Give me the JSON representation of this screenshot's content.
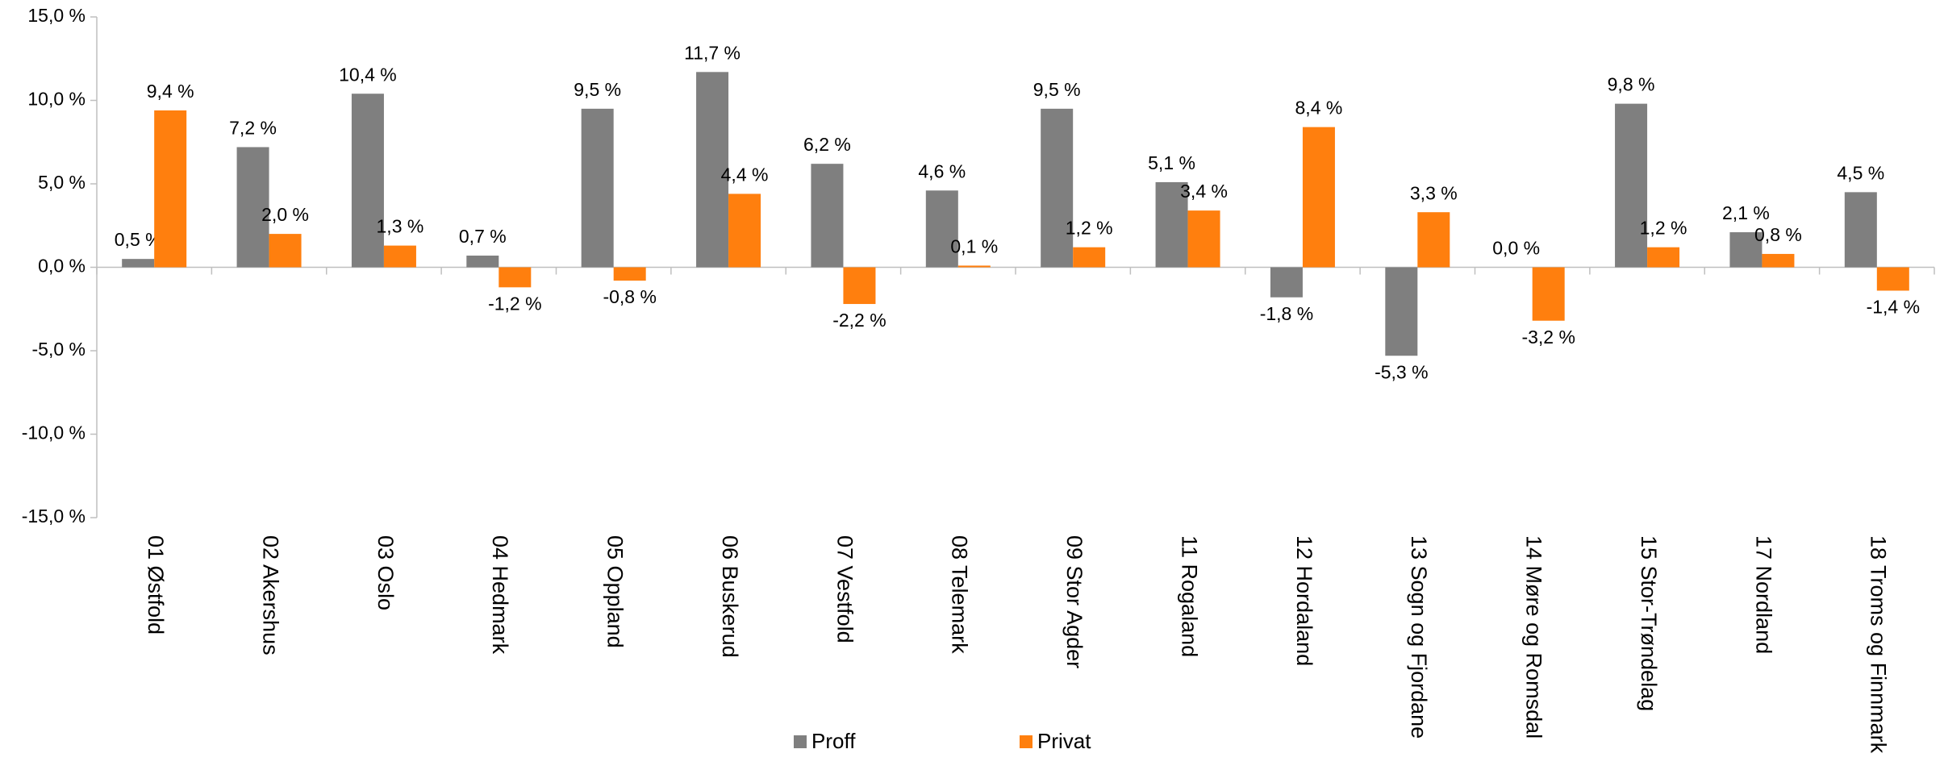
{
  "chart_data": {
    "type": "bar",
    "categories": [
      "01 Østfold",
      "02 Akershus",
      "03 Oslo",
      "04 Hedmark",
      "05 Oppland",
      "06 Buskerud",
      "07 Vestfold",
      "08 Telemark",
      "09 Stor Agder",
      "11 Rogaland",
      "12 Hordaland",
      "13 Sogn og Fjordane",
      "14 Møre og Romsdal",
      "15 Stor-Trøndelag",
      "17 Nordland",
      "18 Troms og Finnmark"
    ],
    "series": [
      {
        "name": "Proff",
        "color": "#7f7f7f",
        "values": [
          0.5,
          7.2,
          10.4,
          0.7,
          9.5,
          11.7,
          6.2,
          4.6,
          9.5,
          5.1,
          -1.8,
          -5.3,
          0.0,
          9.8,
          2.1,
          4.5
        ],
        "value_labels": [
          "0,5 %",
          "7,2 %",
          "10,4 %",
          "0,7 %",
          "9,5 %",
          "11,7 %",
          "6,2 %",
          "4,6 %",
          "9,5 %",
          "5,1 %",
          "-1,8 %",
          "-5,3 %",
          "0,0 %",
          "9,8 %",
          "2,1 %",
          "4,5 %"
        ]
      },
      {
        "name": "Privat",
        "color": "#ff7f0e",
        "values": [
          9.4,
          2.0,
          1.3,
          -1.2,
          -0.8,
          4.4,
          -2.2,
          0.1,
          1.2,
          3.4,
          8.4,
          3.3,
          -3.2,
          1.2,
          0.8,
          -1.4
        ],
        "value_labels": [
          "9,4 %",
          "2,0 %",
          "1,3 %",
          "-1,2 %",
          "-0,8 %",
          "4,4 %",
          "-2,2 %",
          "0,1 %",
          "1,2 %",
          "3,4 %",
          "8,4 %",
          "3,3 %",
          "-3,2 %",
          "1,2 %",
          "0,8 %",
          "-1,4 %"
        ]
      }
    ],
    "ylim": [
      -15,
      15
    ],
    "yticks": [
      {
        "value": -15,
        "label": "-15,0 %"
      },
      {
        "value": -10,
        "label": "-10,0 %"
      },
      {
        "value": -5,
        "label": "-5,0 %"
      },
      {
        "value": 0,
        "label": "0,0 %"
      },
      {
        "value": 5,
        "label": "5,0 %"
      },
      {
        "value": 10,
        "label": "10,0 %"
      },
      {
        "value": 15,
        "label": "15,0 %"
      }
    ],
    "grid": false,
    "legend": "bottom"
  }
}
